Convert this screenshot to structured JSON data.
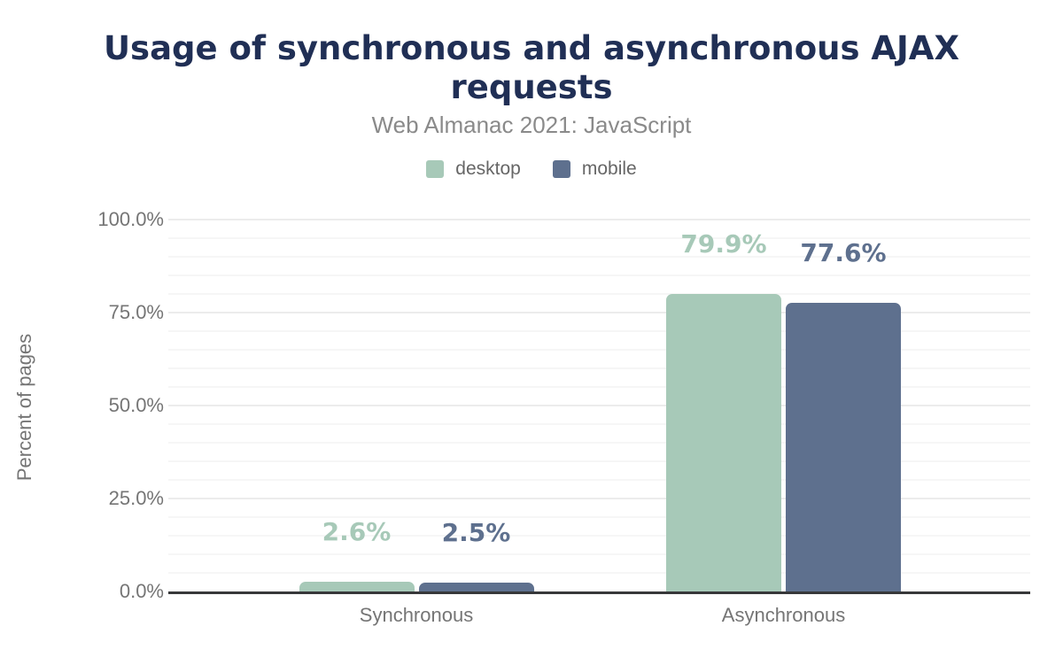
{
  "header": {
    "title": "Usage of synchronous and asynchronous AJAX requests",
    "subtitle": "Web Almanac 2021: JavaScript"
  },
  "chart_data": {
    "type": "bar",
    "title": "Usage of synchronous and asynchronous AJAX requests",
    "subtitle": "Web Almanac 2021: JavaScript",
    "categories": [
      "Synchronous",
      "Asynchronous"
    ],
    "series": [
      {
        "name": "desktop",
        "color": "#a7c9b8",
        "values": [
          2.6,
          79.9
        ],
        "value_labels": [
          "2.6%",
          "79.9%"
        ]
      },
      {
        "name": "mobile",
        "color": "#5e708e",
        "values": [
          2.5,
          77.6
        ],
        "value_labels": [
          "2.5%",
          "77.6%"
        ]
      }
    ],
    "xlabel": "",
    "ylabel": "Percent of pages",
    "ylim": [
      0,
      100
    ],
    "yticks": [
      {
        "value": 0,
        "label": "0.0%"
      },
      {
        "value": 25,
        "label": "25.0%"
      },
      {
        "value": 50,
        "label": "50.0%"
      },
      {
        "value": 75,
        "label": "75.0%"
      },
      {
        "value": 100,
        "label": "100.0%"
      }
    ],
    "minor_grid_step": 5,
    "major_grid_step": 25,
    "grid": true,
    "legend_position": "top"
  },
  "colors": {
    "title": "#202f55",
    "subtitle": "#8a8a8a",
    "axis_text": "#757575",
    "legend_text": "#666666",
    "axis_line": "#37383a",
    "grid_minor": "#f6f6f6",
    "grid_major": "#ececec",
    "background": "#ffffff",
    "desktop": "#a7c9b8",
    "mobile": "#5e708e"
  }
}
